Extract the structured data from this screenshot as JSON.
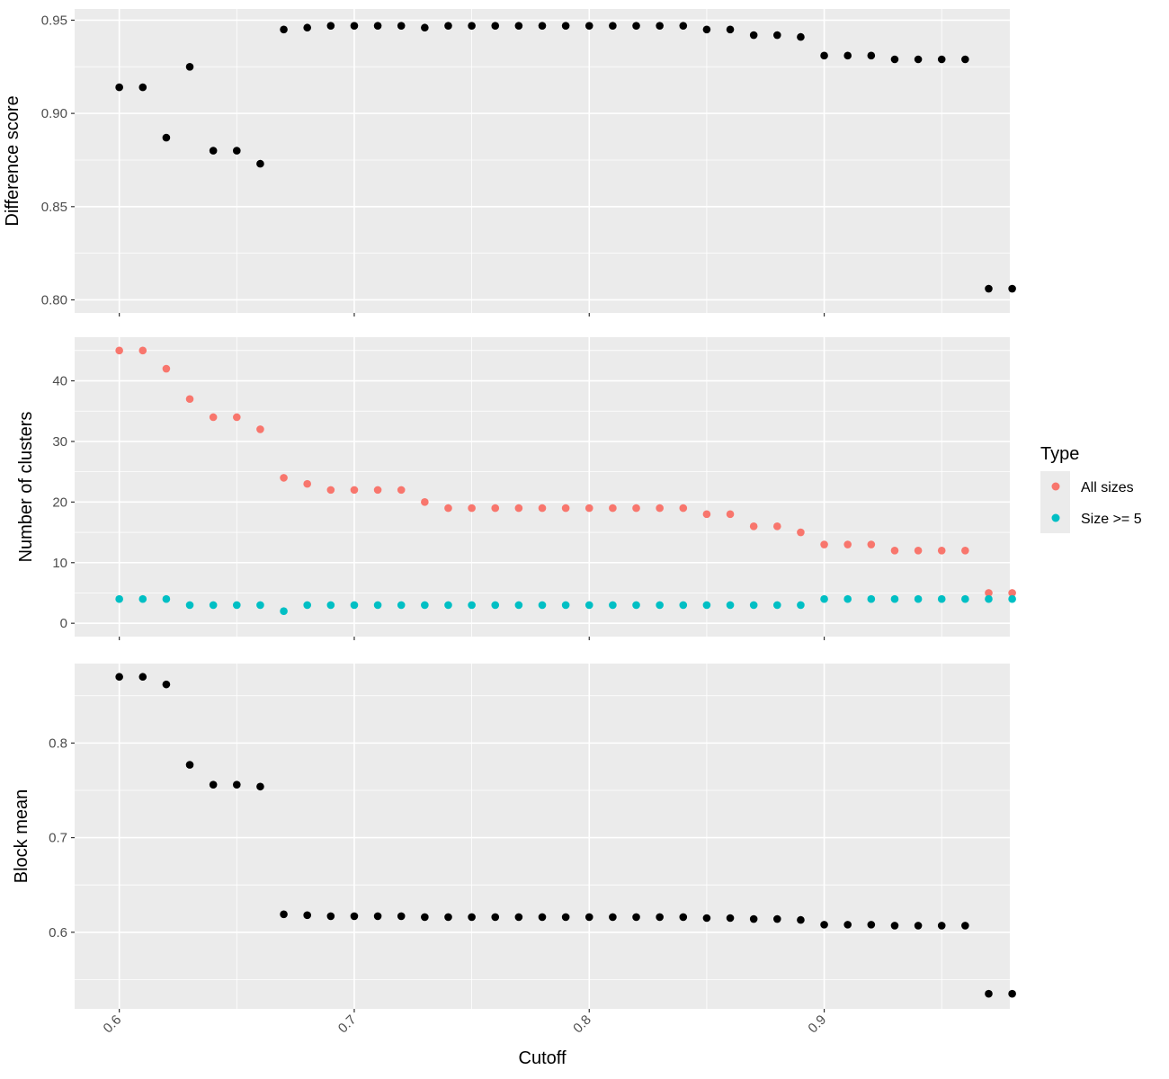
{
  "chart_data": {
    "type": "scatter",
    "xlabel": "Cutoff",
    "x_ticks": [
      0.6,
      0.7,
      0.8,
      0.9
    ],
    "x_tick_labels": [
      "0.6",
      "0.7",
      "0.8",
      "0.9"
    ],
    "xlim": [
      0.581,
      0.979
    ],
    "grid": true,
    "legend": {
      "title": "Type",
      "position": "right",
      "entries": [
        {
          "label": "All sizes",
          "color": "#F8766D"
        },
        {
          "label": "Size >= 5",
          "color": "#00BFC4"
        }
      ]
    },
    "x": [
      0.6,
      0.61,
      0.62,
      0.63,
      0.64,
      0.65,
      0.66,
      0.67,
      0.68,
      0.69,
      0.7,
      0.71,
      0.72,
      0.73,
      0.74,
      0.75,
      0.76,
      0.77,
      0.78,
      0.79,
      0.8,
      0.81,
      0.82,
      0.83,
      0.84,
      0.85,
      0.86,
      0.87,
      0.88,
      0.89,
      0.9,
      0.91,
      0.92,
      0.93,
      0.94,
      0.95,
      0.96,
      0.97,
      0.98
    ],
    "panels": [
      {
        "ylabel": "Difference score",
        "ylim": [
          0.793,
          0.956
        ],
        "y_ticks": [
          0.8,
          0.85,
          0.9,
          0.95
        ],
        "y_tick_labels": [
          "0.80",
          "0.85",
          "0.90",
          "0.95"
        ],
        "series": [
          {
            "color": "#000000",
            "values": [
              0.914,
              0.914,
              0.887,
              0.925,
              0.88,
              0.88,
              0.873,
              0.945,
              0.946,
              0.947,
              0.947,
              0.947,
              0.947,
              0.946,
              0.947,
              0.947,
              0.947,
              0.947,
              0.947,
              0.947,
              0.947,
              0.947,
              0.947,
              0.947,
              0.947,
              0.945,
              0.945,
              0.942,
              0.942,
              0.941,
              0.931,
              0.931,
              0.931,
              0.929,
              0.929,
              0.929,
              0.929,
              0.806,
              0.806
            ]
          }
        ]
      },
      {
        "ylabel": "Number of clusters",
        "ylim": [
          -2.2,
          47.2
        ],
        "y_ticks": [
          0,
          10,
          20,
          30,
          40
        ],
        "y_tick_labels": [
          "0",
          "10",
          "20",
          "30",
          "40"
        ],
        "series": [
          {
            "name": "All sizes",
            "color": "#F8766D",
            "values": [
              45,
              45,
              42,
              37,
              34,
              34,
              32,
              24,
              23,
              22,
              22,
              22,
              22,
              20,
              19,
              19,
              19,
              19,
              19,
              19,
              19,
              19,
              19,
              19,
              19,
              18,
              18,
              16,
              16,
              15,
              13,
              13,
              13,
              12,
              12,
              12,
              12,
              5,
              5
            ]
          },
          {
            "name": "Size >= 5",
            "color": "#00BFC4",
            "values": [
              4,
              4,
              4,
              3,
              3,
              3,
              3,
              2,
              3,
              3,
              3,
              3,
              3,
              3,
              3,
              3,
              3,
              3,
              3,
              3,
              3,
              3,
              3,
              3,
              3,
              3,
              3,
              3,
              3,
              3,
              4,
              4,
              4,
              4,
              4,
              4,
              4,
              4,
              4
            ]
          }
        ]
      },
      {
        "ylabel": "Block mean",
        "ylim": [
          0.519,
          0.884
        ],
        "y_ticks": [
          0.6,
          0.7,
          0.8
        ],
        "y_tick_labels": [
          "0.6",
          "0.7",
          "0.8"
        ],
        "series": [
          {
            "color": "#000000",
            "values": [
              0.87,
              0.87,
              0.862,
              0.777,
              0.756,
              0.756,
              0.754,
              0.619,
              0.618,
              0.617,
              0.617,
              0.617,
              0.617,
              0.616,
              0.616,
              0.616,
              0.616,
              0.616,
              0.616,
              0.616,
              0.616,
              0.616,
              0.616,
              0.616,
              0.616,
              0.615,
              0.615,
              0.614,
              0.614,
              0.613,
              0.608,
              0.608,
              0.608,
              0.607,
              0.607,
              0.607,
              0.607,
              0.535,
              0.535
            ]
          }
        ]
      }
    ]
  }
}
